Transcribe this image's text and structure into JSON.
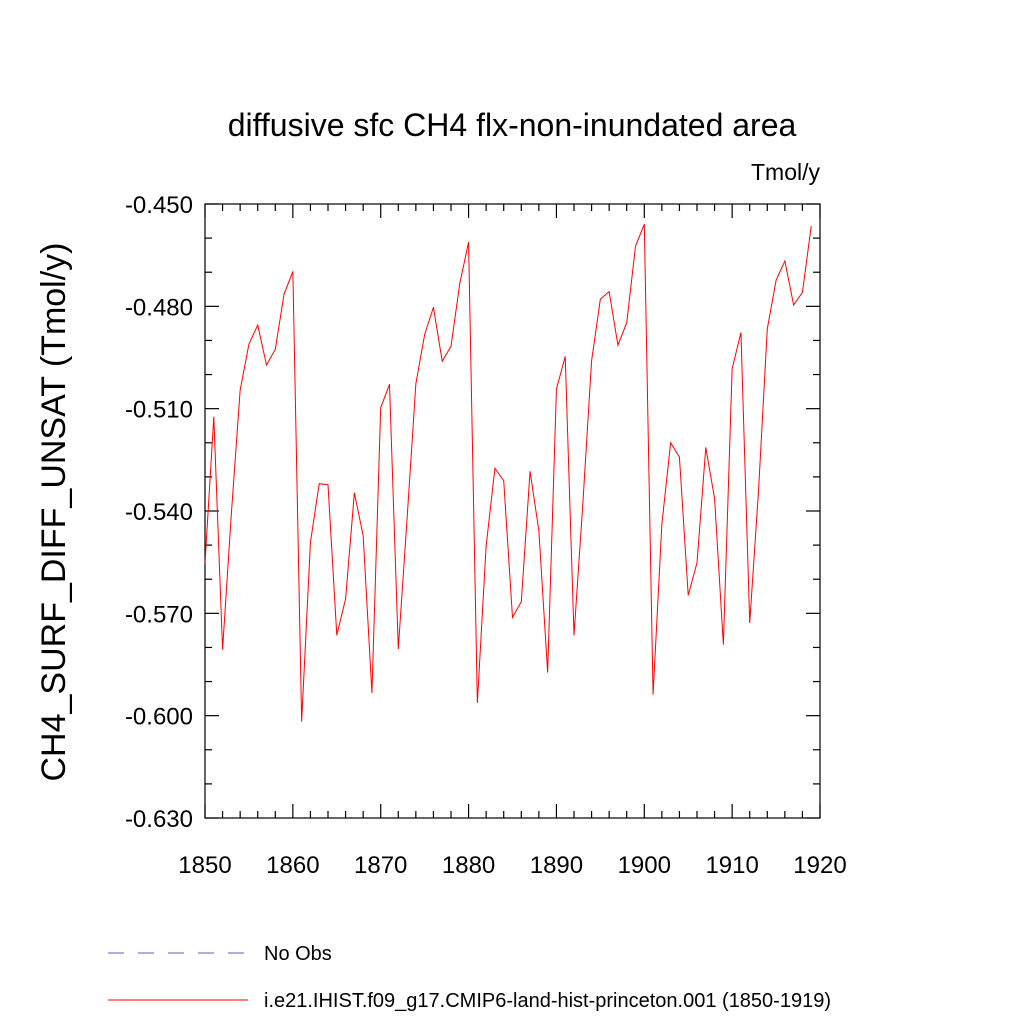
{
  "chart_data": {
    "type": "line",
    "title": "diffusive sfc CH4 flx-non-inundated area",
    "units": "Tmol/y",
    "ylabel": "CH4_SURF_DIFF_UNSAT  (Tmol/y)",
    "xlabel": "",
    "xlim": [
      1850,
      1920
    ],
    "ylim": [
      -0.63,
      -0.45
    ],
    "x_ticks": [
      1850,
      1860,
      1870,
      1880,
      1890,
      1900,
      1910,
      1920
    ],
    "x_tick_labels": [
      "1850",
      "1860",
      "1870",
      "1880",
      "1890",
      "1900",
      "1910",
      "1920"
    ],
    "y_ticks": [
      -0.63,
      -0.6,
      -0.57,
      -0.54,
      -0.51,
      -0.48,
      -0.45
    ],
    "y_tick_labels": [
      "-0.630",
      "-0.600",
      "-0.570",
      "-0.540",
      "-0.510",
      "-0.480",
      "-0.450"
    ],
    "grid": false,
    "legend_position": "bottom",
    "series": [
      {
        "name": "i.e21.IHIST.f09_g17.CMIP6-land-hist-princeton.001 (1850-1919)",
        "color": "#ff0000",
        "dash": "solid",
        "x": [
          1850,
          1851,
          1852,
          1853,
          1854,
          1855,
          1856,
          1857,
          1858,
          1859,
          1860,
          1861,
          1862,
          1863,
          1864,
          1865,
          1866,
          1867,
          1868,
          1869,
          1870,
          1871,
          1872,
          1873,
          1874,
          1875,
          1876,
          1877,
          1878,
          1879,
          1880,
          1881,
          1882,
          1883,
          1884,
          1885,
          1886,
          1887,
          1888,
          1889,
          1890,
          1891,
          1892,
          1893,
          1894,
          1895,
          1896,
          1897,
          1898,
          1899,
          1900,
          1901,
          1902,
          1903,
          1904,
          1905,
          1906,
          1907,
          1908,
          1909,
          1910,
          1911,
          1912,
          1913,
          1914,
          1915,
          1916,
          1917,
          1918,
          1919
        ],
        "y": [
          -0.5553,
          -0.5124,
          -0.5806,
          -0.5408,
          -0.5046,
          -0.4911,
          -0.4855,
          -0.4972,
          -0.4926,
          -0.4764,
          -0.4698,
          -0.6017,
          -0.5492,
          -0.532,
          -0.5323,
          -0.5764,
          -0.5658,
          -0.5347,
          -0.5472,
          -0.5933,
          -0.5097,
          -0.5029,
          -0.5804,
          -0.5423,
          -0.5027,
          -0.4883,
          -0.4803,
          -0.4961,
          -0.4917,
          -0.4733,
          -0.4612,
          -0.5962,
          -0.5502,
          -0.5275,
          -0.5311,
          -0.5712,
          -0.5666,
          -0.5284,
          -0.5458,
          -0.5873,
          -0.5043,
          -0.4947,
          -0.5764,
          -0.5381,
          -0.496,
          -0.4779,
          -0.4757,
          -0.4914,
          -0.4848,
          -0.4624,
          -0.4559,
          -0.5938,
          -0.5439,
          -0.52,
          -0.5242,
          -0.5647,
          -0.5552,
          -0.5214,
          -0.5363,
          -0.5791,
          -0.4983,
          -0.4877,
          -0.5728,
          -0.5342,
          -0.4866,
          -0.4724,
          -0.4667,
          -0.4796,
          -0.4759,
          -0.4565
        ]
      }
    ],
    "legend": [
      {
        "label": "No Obs",
        "color": "#6a5acd",
        "dash": "dashed"
      },
      {
        "label": "i.e21.IHIST.f09_g17.CMIP6-land-hist-princeton.001 (1850-1919)",
        "color": "#ff0000",
        "dash": "solid"
      }
    ]
  }
}
